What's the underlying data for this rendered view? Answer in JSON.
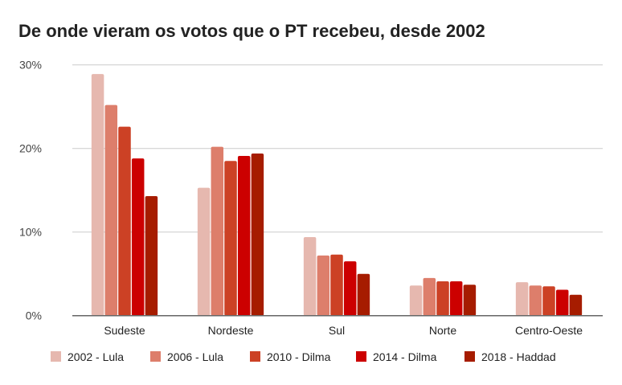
{
  "chart_data": {
    "type": "bar",
    "title": "De onde vieram os votos que o PT recebeu, desde 2002",
    "xlabel": "",
    "ylabel": "",
    "ylim": [
      0,
      30
    ],
    "yticks": [
      "0%",
      "10%",
      "20%",
      "30%"
    ],
    "grid": true,
    "legend_position": "bottom",
    "categories": [
      "Sudeste",
      "Nordeste",
      "Sul",
      "Norte",
      "Centro-Oeste"
    ],
    "series": [
      {
        "name": "2002 - Lula",
        "color": "#e6b8af",
        "values": [
          28.9,
          15.3,
          9.4,
          3.6,
          4.0
        ]
      },
      {
        "name": "2006 - Lula",
        "color": "#dd7e6b",
        "values": [
          25.2,
          20.2,
          7.2,
          4.5,
          3.6
        ]
      },
      {
        "name": "2010 - Dilma",
        "color": "#cc4125",
        "values": [
          22.6,
          18.5,
          7.3,
          4.1,
          3.5
        ]
      },
      {
        "name": "2014 - Dilma",
        "color": "#cc0000",
        "values": [
          18.8,
          19.1,
          6.5,
          4.1,
          3.1
        ]
      },
      {
        "name": "2018 - Haddad",
        "color": "#a61c00",
        "values": [
          14.3,
          19.4,
          5.0,
          3.7,
          2.5
        ]
      }
    ]
  }
}
